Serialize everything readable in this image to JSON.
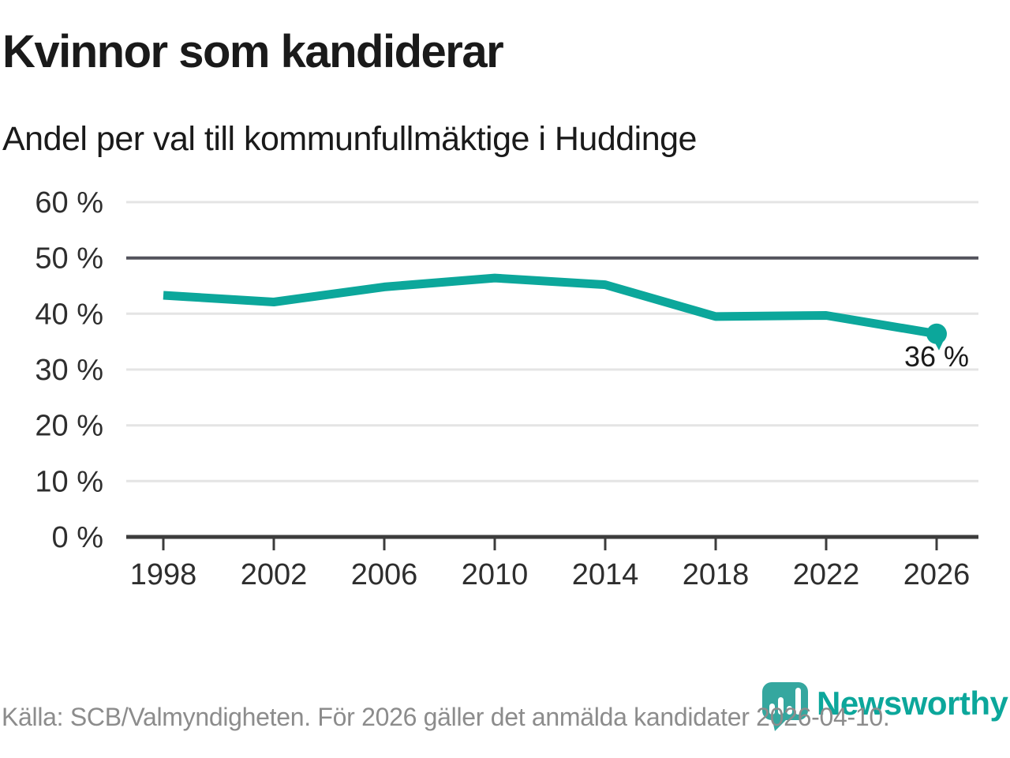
{
  "chart_data": {
    "type": "line",
    "title": "Kvinnor som kandiderar",
    "subtitle": "Andel per val till kommunfullmäktige i Huddinge",
    "x": [
      "1998",
      "2002",
      "2006",
      "2010",
      "2014",
      "2018",
      "2022",
      "2026"
    ],
    "values": [
      43.3,
      42.1,
      44.8,
      46.4,
      45.2,
      39.5,
      39.7,
      36.4
    ],
    "xlabel": "",
    "ylabel": "",
    "ylim": [
      0,
      60
    ],
    "yticks": [
      0,
      10,
      20,
      30,
      40,
      50,
      60
    ],
    "ytick_suffix": " %",
    "grid": true,
    "legend": "none",
    "emphasized_gridline": 50,
    "last_point_marker": true,
    "last_point_label": "36 %"
  },
  "footer": {
    "source_text": "Källa: SCB/Valmyndigheten. För 2026 gäller det anmälda kandidater 2026-04-10.",
    "brand_name": "Newsworthy",
    "brand_icon": "newsworthy-speech-bubble-bar-chart-icon"
  },
  "colors": {
    "accent": "#0ca79b",
    "line": "#0ca79b",
    "grid_light": "#e4e4e4",
    "grid_emphasis": "#53535c",
    "axis": "#3c3c3c",
    "tick_text": "#2e2e2e",
    "text": "#1a1a1a",
    "muted_text": "#8c8c8c",
    "logo_teal": "#35a79f"
  }
}
